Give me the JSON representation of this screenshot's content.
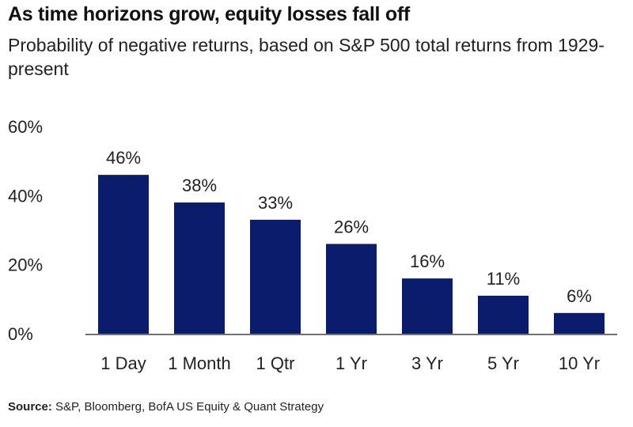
{
  "header": {
    "title": "As time horizons grow, equity losses fall off",
    "subtitle": "Probability of negative returns, based on S&P 500 total returns from 1929-present"
  },
  "chart_data": {
    "type": "bar",
    "categories": [
      "1 Day",
      "1 Month",
      "1 Qtr",
      "1 Yr",
      "3 Yr",
      "5 Yr",
      "10 Yr"
    ],
    "values": [
      46,
      38,
      33,
      26,
      16,
      11,
      6
    ],
    "data_labels": [
      "46%",
      "38%",
      "33%",
      "26%",
      "16%",
      "11%",
      "6%"
    ],
    "ylim": [
      0,
      60
    ],
    "yticks": [
      0,
      20,
      40,
      60
    ],
    "ytick_labels": [
      "0%",
      "20%",
      "40%",
      "60%"
    ],
    "bar_color": "#0a1c6b",
    "grid": false,
    "legend": "none"
  },
  "footer": {
    "source_label": "Source:",
    "source_text": "S&P, Bloomberg, BofA US Equity & Quant Strategy"
  }
}
